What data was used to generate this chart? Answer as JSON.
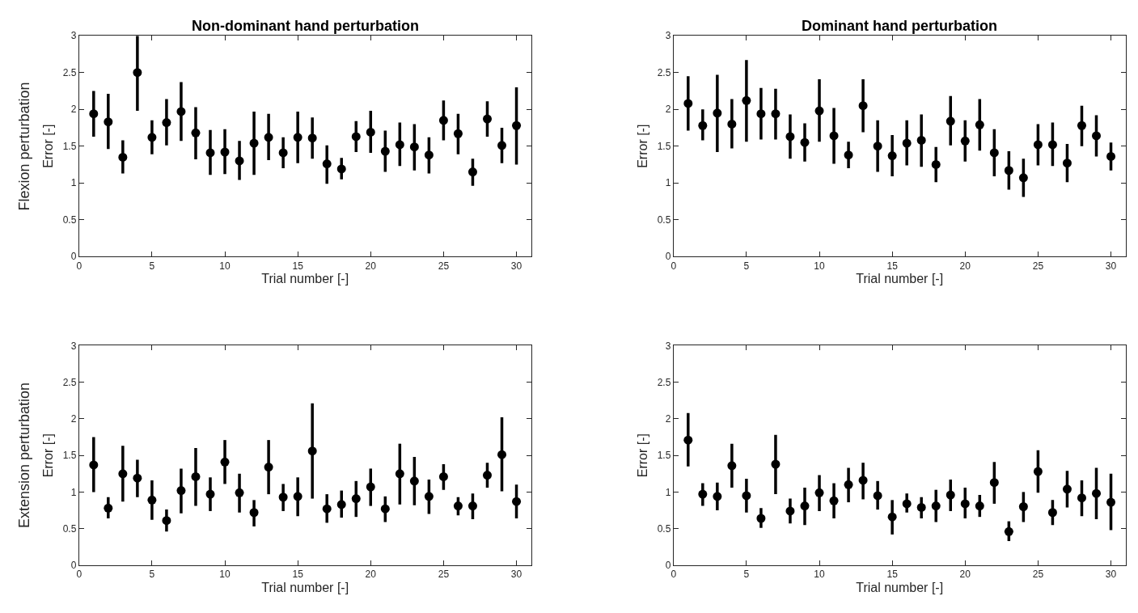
{
  "chart_data": [
    {
      "type": "scatter",
      "title": "Non-dominant hand perturbation",
      "xlabel": "Trial number [-]",
      "ylabel": "Error [-]",
      "annotations": [
        "Flexion perturbation"
      ],
      "marker": "circle",
      "xlim": [
        0,
        31
      ],
      "xticks": [
        0,
        5,
        10,
        15,
        20,
        25,
        30
      ],
      "ylim": [
        0,
        3
      ],
      "yticks": [
        0,
        0.5,
        1,
        1.5,
        2,
        2.5,
        3
      ],
      "x": [
        1,
        2,
        3,
        4,
        5,
        6,
        7,
        8,
        9,
        10,
        11,
        12,
        13,
        14,
        15,
        16,
        17,
        18,
        19,
        20,
        21,
        22,
        23,
        24,
        25,
        26,
        27,
        28,
        29,
        30
      ],
      "series": [
        {
          "color": "#000000",
          "values": [
            1.94,
            1.83,
            1.35,
            2.5,
            1.62,
            1.82,
            1.97,
            1.68,
            1.41,
            1.42,
            1.3,
            1.54,
            1.62,
            1.41,
            1.62,
            1.61,
            1.26,
            1.19,
            1.63,
            1.69,
            1.43,
            1.52,
            1.49,
            1.38,
            1.85,
            1.67,
            1.15,
            1.87,
            1.51,
            1.78
          ],
          "errors": [
            [
              1.63,
              2.25
            ],
            [
              1.46,
              2.21
            ],
            [
              1.13,
              1.58
            ],
            [
              1.98,
              3.0
            ],
            [
              1.39,
              1.85
            ],
            [
              1.51,
              2.14
            ],
            [
              1.57,
              2.37
            ],
            [
              1.32,
              2.03
            ],
            [
              1.11,
              1.72
            ],
            [
              1.12,
              1.73
            ],
            [
              1.04,
              1.57
            ],
            [
              1.11,
              1.97
            ],
            [
              1.31,
              1.94
            ],
            [
              1.2,
              1.62
            ],
            [
              1.27,
              1.97
            ],
            [
              1.33,
              1.89
            ],
            [
              0.99,
              1.51
            ],
            [
              1.05,
              1.34
            ],
            [
              1.42,
              1.84
            ],
            [
              1.41,
              1.98
            ],
            [
              1.15,
              1.71
            ],
            [
              1.23,
              1.82
            ],
            [
              1.17,
              1.8
            ],
            [
              1.13,
              1.62
            ],
            [
              1.58,
              2.12
            ],
            [
              1.39,
              1.94
            ],
            [
              0.96,
              1.33
            ],
            [
              1.63,
              2.11
            ],
            [
              1.27,
              1.75
            ],
            [
              1.25,
              2.3
            ]
          ]
        }
      ]
    },
    {
      "type": "scatter",
      "title": "Dominant hand perturbation",
      "xlabel": "Trial number [-]",
      "ylabel": "Error [-]",
      "marker": "circle",
      "xlim": [
        0,
        31
      ],
      "xticks": [
        0,
        5,
        10,
        15,
        20,
        25,
        30
      ],
      "ylim": [
        0,
        3
      ],
      "yticks": [
        0,
        0.5,
        1,
        1.5,
        2,
        2.5,
        3
      ],
      "x": [
        1,
        2,
        3,
        4,
        5,
        6,
        7,
        8,
        9,
        10,
        11,
        12,
        13,
        14,
        15,
        16,
        17,
        18,
        19,
        20,
        21,
        22,
        23,
        24,
        25,
        26,
        27,
        28,
        29,
        30
      ],
      "series": [
        {
          "color": "#000000",
          "values": [
            2.08,
            1.78,
            1.95,
            1.8,
            2.12,
            1.94,
            1.94,
            1.63,
            1.55,
            1.98,
            1.64,
            1.38,
            2.05,
            1.5,
            1.37,
            1.54,
            1.58,
            1.25,
            1.84,
            1.57,
            1.79,
            1.41,
            1.17,
            1.07,
            1.52,
            1.52,
            1.27,
            1.78,
            1.64,
            1.36
          ],
          "errors": [
            [
              1.71,
              2.45
            ],
            [
              1.58,
              2.0
            ],
            [
              1.42,
              2.47
            ],
            [
              1.47,
              2.14
            ],
            [
              1.56,
              2.67
            ],
            [
              1.59,
              2.29
            ],
            [
              1.59,
              2.28
            ],
            [
              1.33,
              1.93
            ],
            [
              1.29,
              1.81
            ],
            [
              1.56,
              2.41
            ],
            [
              1.26,
              2.02
            ],
            [
              1.2,
              1.56
            ],
            [
              1.69,
              2.41
            ],
            [
              1.15,
              1.85
            ],
            [
              1.09,
              1.65
            ],
            [
              1.24,
              1.85
            ],
            [
              1.22,
              1.93
            ],
            [
              1.01,
              1.49
            ],
            [
              1.51,
              2.18
            ],
            [
              1.29,
              1.85
            ],
            [
              1.44,
              2.14
            ],
            [
              1.09,
              1.73
            ],
            [
              0.91,
              1.43
            ],
            [
              0.81,
              1.33
            ],
            [
              1.24,
              1.8
            ],
            [
              1.23,
              1.82
            ],
            [
              1.01,
              1.53
            ],
            [
              1.5,
              2.05
            ],
            [
              1.36,
              1.92
            ],
            [
              1.17,
              1.55
            ]
          ]
        }
      ]
    },
    {
      "type": "scatter",
      "xlabel": "Trial number [-]",
      "ylabel": "Error [-]",
      "annotations": [
        "Extension perturbation"
      ],
      "marker": "circle",
      "xlim": [
        0,
        31
      ],
      "xticks": [
        0,
        5,
        10,
        15,
        20,
        25,
        30
      ],
      "ylim": [
        0,
        3
      ],
      "yticks": [
        0,
        0.5,
        1,
        1.5,
        2,
        2.5,
        3
      ],
      "x": [
        1,
        2,
        3,
        4,
        5,
        6,
        7,
        8,
        9,
        10,
        11,
        12,
        13,
        14,
        15,
        16,
        17,
        18,
        19,
        20,
        21,
        22,
        23,
        24,
        25,
        26,
        27,
        28,
        29,
        30
      ],
      "series": [
        {
          "color": "#000000",
          "values": [
            1.37,
            0.78,
            1.25,
            1.19,
            0.89,
            0.61,
            1.02,
            1.21,
            0.97,
            1.41,
            0.99,
            0.72,
            1.34,
            0.93,
            0.94,
            1.56,
            0.77,
            0.83,
            0.91,
            1.07,
            0.77,
            1.25,
            1.15,
            0.94,
            1.21,
            0.81,
            0.81,
            1.23,
            1.51,
            0.87
          ],
          "errors": [
            [
              1.0,
              1.75
            ],
            [
              0.64,
              0.93
            ],
            [
              0.87,
              1.63
            ],
            [
              0.93,
              1.44
            ],
            [
              0.62,
              1.16
            ],
            [
              0.46,
              0.76
            ],
            [
              0.71,
              1.32
            ],
            [
              0.81,
              1.6
            ],
            [
              0.74,
              1.2
            ],
            [
              1.11,
              1.71
            ],
            [
              0.72,
              1.25
            ],
            [
              0.53,
              0.89
            ],
            [
              0.97,
              1.71
            ],
            [
              0.74,
              1.11
            ],
            [
              0.67,
              1.2
            ],
            [
              0.91,
              2.21
            ],
            [
              0.58,
              0.97
            ],
            [
              0.65,
              1.02
            ],
            [
              0.66,
              1.15
            ],
            [
              0.81,
              1.32
            ],
            [
              0.59,
              0.94
            ],
            [
              0.83,
              1.66
            ],
            [
              0.82,
              1.48
            ],
            [
              0.7,
              1.17
            ],
            [
              1.03,
              1.38
            ],
            [
              0.68,
              0.93
            ],
            [
              0.63,
              0.98
            ],
            [
              1.06,
              1.4
            ],
            [
              1.01,
              2.02
            ],
            [
              0.64,
              1.1
            ]
          ]
        }
      ]
    },
    {
      "type": "scatter",
      "xlabel": "Trial number [-]",
      "ylabel": "Error [-]",
      "marker": "circle",
      "xlim": [
        0,
        31
      ],
      "xticks": [
        0,
        5,
        10,
        15,
        20,
        25,
        30
      ],
      "ylim": [
        0,
        3
      ],
      "yticks": [
        0,
        0.5,
        1,
        1.5,
        2,
        2.5,
        3
      ],
      "x": [
        1,
        2,
        3,
        4,
        5,
        6,
        7,
        8,
        9,
        10,
        11,
        12,
        13,
        14,
        15,
        16,
        17,
        18,
        19,
        20,
        21,
        22,
        23,
        24,
        25,
        26,
        27,
        28,
        29,
        30
      ],
      "series": [
        {
          "color": "#000000",
          "values": [
            1.71,
            0.97,
            0.94,
            1.36,
            0.95,
            0.64,
            1.38,
            0.74,
            0.81,
            0.99,
            0.88,
            1.1,
            1.16,
            0.95,
            0.66,
            0.84,
            0.79,
            0.81,
            0.96,
            0.84,
            0.81,
            1.13,
            0.46,
            0.8,
            1.28,
            0.72,
            1.04,
            0.92,
            0.98,
            0.86
          ],
          "errors": [
            [
              1.35,
              2.08
            ],
            [
              0.81,
              1.12
            ],
            [
              0.75,
              1.13
            ],
            [
              1.06,
              1.66
            ],
            [
              0.72,
              1.18
            ],
            [
              0.51,
              0.78
            ],
            [
              0.97,
              1.78
            ],
            [
              0.57,
              0.91
            ],
            [
              0.55,
              1.06
            ],
            [
              0.74,
              1.23
            ],
            [
              0.64,
              1.12
            ],
            [
              0.86,
              1.33
            ],
            [
              0.9,
              1.4
            ],
            [
              0.76,
              1.15
            ],
            [
              0.42,
              0.89
            ],
            [
              0.72,
              0.98
            ],
            [
              0.64,
              0.93
            ],
            [
              0.59,
              1.03
            ],
            [
              0.74,
              1.17
            ],
            [
              0.64,
              1.06
            ],
            [
              0.66,
              0.96
            ],
            [
              0.84,
              1.41
            ],
            [
              0.33,
              0.6
            ],
            [
              0.59,
              1.0
            ],
            [
              0.99,
              1.57
            ],
            [
              0.55,
              0.89
            ],
            [
              0.79,
              1.29
            ],
            [
              0.67,
              1.16
            ],
            [
              0.63,
              1.33
            ],
            [
              0.48,
              1.25
            ]
          ]
        }
      ]
    }
  ]
}
